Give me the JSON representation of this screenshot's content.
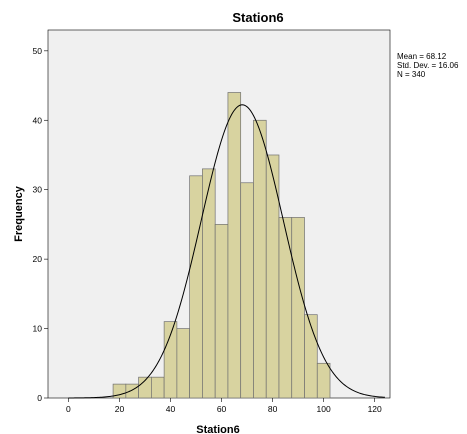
{
  "chart_data": {
    "type": "bar",
    "title": "Station6",
    "xlabel": "Station6",
    "ylabel": "Frequency",
    "xlim": [
      -8,
      126
    ],
    "ylim": [
      0,
      53
    ],
    "x_ticks": [
      0,
      20,
      40,
      60,
      80,
      100,
      120
    ],
    "y_ticks": [
      0,
      10,
      20,
      30,
      40,
      50
    ],
    "bin_width": 5,
    "bins": [
      {
        "start": 17.5,
        "end": 22.5,
        "count": 2
      },
      {
        "start": 22.5,
        "end": 27.5,
        "count": 2
      },
      {
        "start": 27.5,
        "end": 32.5,
        "count": 3
      },
      {
        "start": 32.5,
        "end": 37.5,
        "count": 3
      },
      {
        "start": 37.5,
        "end": 42.5,
        "count": 11
      },
      {
        "start": 42.5,
        "end": 47.5,
        "count": 10
      },
      {
        "start": 47.5,
        "end": 52.5,
        "count": 32
      },
      {
        "start": 52.5,
        "end": 57.5,
        "count": 33
      },
      {
        "start": 57.5,
        "end": 62.5,
        "count": 25
      },
      {
        "start": 62.5,
        "end": 67.5,
        "count": 44
      },
      {
        "start": 67.5,
        "end": 72.5,
        "count": 31
      },
      {
        "start": 72.5,
        "end": 77.5,
        "count": 40
      },
      {
        "start": 77.5,
        "end": 82.5,
        "count": 35
      },
      {
        "start": 82.5,
        "end": 87.5,
        "count": 26
      },
      {
        "start": 87.5,
        "end": 92.5,
        "count": 26
      },
      {
        "start": 92.5,
        "end": 97.5,
        "count": 12
      },
      {
        "start": 97.5,
        "end": 102.5,
        "count": 5
      }
    ],
    "normal_curve": {
      "mean": 68.12,
      "std_dev": 16.06,
      "n": 340
    },
    "stats_text": [
      "Mean = 68.12",
      "Std. Dev. = 16.06",
      "N = 340"
    ],
    "grid": false,
    "legend_placement": "right",
    "colors": {
      "plot_background": "#f0f0f0",
      "bar_fill": "#d8d3a0",
      "bar_stroke": "#707070",
      "curve": "#000000"
    }
  }
}
